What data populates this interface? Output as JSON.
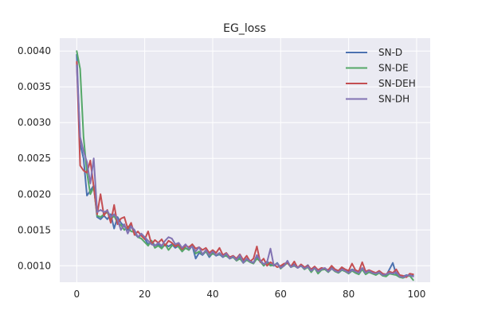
{
  "chart_data": {
    "type": "line",
    "title": "EG_loss",
    "xlabel": "",
    "ylabel": "",
    "xlim": [
      -5,
      104
    ],
    "ylim": [
      0.00077,
      0.00418
    ],
    "xticks": [
      0,
      20,
      40,
      60,
      80,
      100
    ],
    "xtick_labels": [
      "0",
      "20",
      "40",
      "60",
      "80",
      "100"
    ],
    "yticks": [
      0.001,
      0.0015,
      0.002,
      0.0025,
      0.003,
      0.0035,
      0.004
    ],
    "ytick_labels": [
      "0.0010",
      "0.0015",
      "0.0020",
      "0.0025",
      "0.0030",
      "0.0035",
      "0.0040"
    ],
    "grid": true,
    "legend_position": "top-right",
    "style": {
      "background": "#eaeaf2",
      "grid_color": "#ffffff"
    },
    "x": [
      0,
      1,
      2,
      3,
      4,
      5,
      6,
      7,
      8,
      9,
      10,
      11,
      12,
      13,
      14,
      15,
      16,
      17,
      18,
      19,
      20,
      21,
      22,
      23,
      24,
      25,
      26,
      27,
      28,
      29,
      30,
      31,
      32,
      33,
      34,
      35,
      36,
      37,
      38,
      39,
      40,
      41,
      42,
      43,
      44,
      45,
      46,
      47,
      48,
      49,
      50,
      51,
      52,
      53,
      54,
      55,
      56,
      57,
      58,
      59,
      60,
      61,
      62,
      63,
      64,
      65,
      66,
      67,
      68,
      69,
      70,
      71,
      72,
      73,
      74,
      75,
      76,
      77,
      78,
      79,
      80,
      81,
      82,
      83,
      84,
      85,
      86,
      87,
      88,
      89,
      90,
      91,
      92,
      93,
      94,
      95,
      96,
      97,
      98,
      99
    ],
    "series": [
      {
        "name": "SN-D",
        "color": "#4c72b0",
        "values": [
          0.00395,
          0.0027,
          0.0025,
          0.00198,
          0.00205,
          0.00212,
          0.00168,
          0.00165,
          0.0017,
          0.00165,
          0.00172,
          0.00152,
          0.00168,
          0.0016,
          0.00155,
          0.0015,
          0.00156,
          0.00145,
          0.0014,
          0.00143,
          0.00138,
          0.0013,
          0.00135,
          0.00128,
          0.0013,
          0.00125,
          0.0013,
          0.00127,
          0.0013,
          0.00125,
          0.00128,
          0.0012,
          0.00125,
          0.00122,
          0.00128,
          0.0011,
          0.00118,
          0.00115,
          0.0012,
          0.00112,
          0.00118,
          0.00114,
          0.00116,
          0.00112,
          0.00115,
          0.0011,
          0.00112,
          0.00108,
          0.00112,
          0.00105,
          0.0011,
          0.00107,
          0.00104,
          0.00112,
          0.00108,
          0.00102,
          0.00106,
          0.00102,
          0.001,
          0.00104,
          0.00097,
          0.00101,
          0.00105,
          0.00099,
          0.00102,
          0.00098,
          0.001,
          0.00097,
          0.00101,
          0.00094,
          0.00098,
          0.00093,
          0.00097,
          0.00095,
          0.00093,
          0.00097,
          0.00095,
          0.00092,
          0.00096,
          0.00094,
          0.00092,
          0.00095,
          0.00093,
          0.00091,
          0.00096,
          0.0009,
          0.00093,
          0.00091,
          0.00089,
          0.00092,
          0.00088,
          0.00086,
          0.00095,
          0.00104,
          0.00088,
          0.00086,
          0.00085,
          0.00087,
          0.00086,
          0.00086
        ]
      },
      {
        "name": "SN-DE",
        "color": "#55a868",
        "values": [
          0.004,
          0.00375,
          0.0028,
          0.0023,
          0.002,
          0.0021,
          0.0017,
          0.00168,
          0.00172,
          0.00175,
          0.00165,
          0.0017,
          0.0016,
          0.00157,
          0.0015,
          0.00155,
          0.00148,
          0.00147,
          0.0014,
          0.00138,
          0.00133,
          0.00128,
          0.00135,
          0.00125,
          0.00128,
          0.00124,
          0.0013,
          0.00122,
          0.00128,
          0.0013,
          0.00126,
          0.0012,
          0.00125,
          0.00122,
          0.0013,
          0.00117,
          0.0012,
          0.00116,
          0.0012,
          0.00114,
          0.00117,
          0.00115,
          0.00117,
          0.00113,
          0.00114,
          0.0011,
          0.00112,
          0.00107,
          0.0011,
          0.00104,
          0.00108,
          0.00105,
          0.00103,
          0.0011,
          0.00106,
          0.001,
          0.00104,
          0.001,
          0.00101,
          0.00103,
          0.00096,
          0.001,
          0.00104,
          0.00098,
          0.001,
          0.00097,
          0.001,
          0.00095,
          0.00098,
          0.00091,
          0.00097,
          0.00089,
          0.00094,
          0.00095,
          0.00091,
          0.00096,
          0.00092,
          0.0009,
          0.00094,
          0.00092,
          0.00089,
          0.00093,
          0.0009,
          0.00088,
          0.00095,
          0.00088,
          0.00091,
          0.00089,
          0.00087,
          0.0009,
          0.00086,
          0.00085,
          0.00089,
          0.00088,
          0.00087,
          0.00084,
          0.00083,
          0.00085,
          0.00086,
          0.0008
        ]
      },
      {
        "name": "SN-DEH",
        "color": "#c44e52",
        "values": [
          0.00385,
          0.0024,
          0.00233,
          0.0023,
          0.00247,
          0.0021,
          0.00172,
          0.002,
          0.0017,
          0.00178,
          0.0016,
          0.00185,
          0.00158,
          0.00166,
          0.00168,
          0.00152,
          0.0016,
          0.00143,
          0.00148,
          0.00142,
          0.00137,
          0.00148,
          0.0013,
          0.00136,
          0.00132,
          0.00137,
          0.00128,
          0.00135,
          0.00132,
          0.00127,
          0.0013,
          0.00123,
          0.00128,
          0.00126,
          0.0013,
          0.00124,
          0.00126,
          0.00122,
          0.00125,
          0.00118,
          0.00122,
          0.00118,
          0.00125,
          0.00115,
          0.00118,
          0.00112,
          0.00114,
          0.0011,
          0.00116,
          0.00108,
          0.00114,
          0.00106,
          0.0011,
          0.00127,
          0.00105,
          0.0011,
          0.001,
          0.00105,
          0.00102,
          0.00098,
          0.001,
          0.00103,
          0.00104,
          0.00099,
          0.00106,
          0.00097,
          0.00102,
          0.00098,
          0.001,
          0.00095,
          0.00099,
          0.00094,
          0.00097,
          0.00096,
          0.00094,
          0.001,
          0.00095,
          0.00093,
          0.00098,
          0.00095,
          0.00093,
          0.00103,
          0.00094,
          0.00092,
          0.00105,
          0.00092,
          0.00094,
          0.00092,
          0.0009,
          0.00093,
          0.00089,
          0.00088,
          0.00092,
          0.0009,
          0.00095,
          0.00087,
          0.00086,
          0.00084,
          0.00089,
          0.00088
        ]
      },
      {
        "name": "SN-DH",
        "color": "#8172b2",
        "values": [
          0.0038,
          0.0028,
          0.0026,
          0.00245,
          0.00215,
          0.0025,
          0.00175,
          0.00178,
          0.00175,
          0.00177,
          0.00168,
          0.00172,
          0.00165,
          0.0015,
          0.00158,
          0.00145,
          0.00155,
          0.0015,
          0.0014,
          0.00145,
          0.0014,
          0.00135,
          0.0013,
          0.00128,
          0.00132,
          0.00128,
          0.00135,
          0.0014,
          0.00138,
          0.0013,
          0.00132,
          0.00125,
          0.0013,
          0.00124,
          0.00127,
          0.0012,
          0.00126,
          0.00116,
          0.00122,
          0.00115,
          0.0012,
          0.00115,
          0.00118,
          0.00113,
          0.00117,
          0.0011,
          0.00113,
          0.00108,
          0.00115,
          0.00104,
          0.0011,
          0.00106,
          0.00104,
          0.00115,
          0.00107,
          0.00102,
          0.00105,
          0.00124,
          0.001,
          0.00103,
          0.00097,
          0.001,
          0.00107,
          0.00098,
          0.00101,
          0.00097,
          0.001,
          0.00096,
          0.00099,
          0.00093,
          0.00097,
          0.00092,
          0.00095,
          0.00097,
          0.00092,
          0.00096,
          0.00093,
          0.00091,
          0.00095,
          0.00093,
          0.0009,
          0.00094,
          0.00092,
          0.0009,
          0.00097,
          0.0009,
          0.00093,
          0.0009,
          0.00089,
          0.00091,
          0.00087,
          0.00088,
          0.0009,
          0.00089,
          0.00091,
          0.00085,
          0.00084,
          0.00086,
          0.00087,
          0.00085
        ]
      }
    ]
  }
}
